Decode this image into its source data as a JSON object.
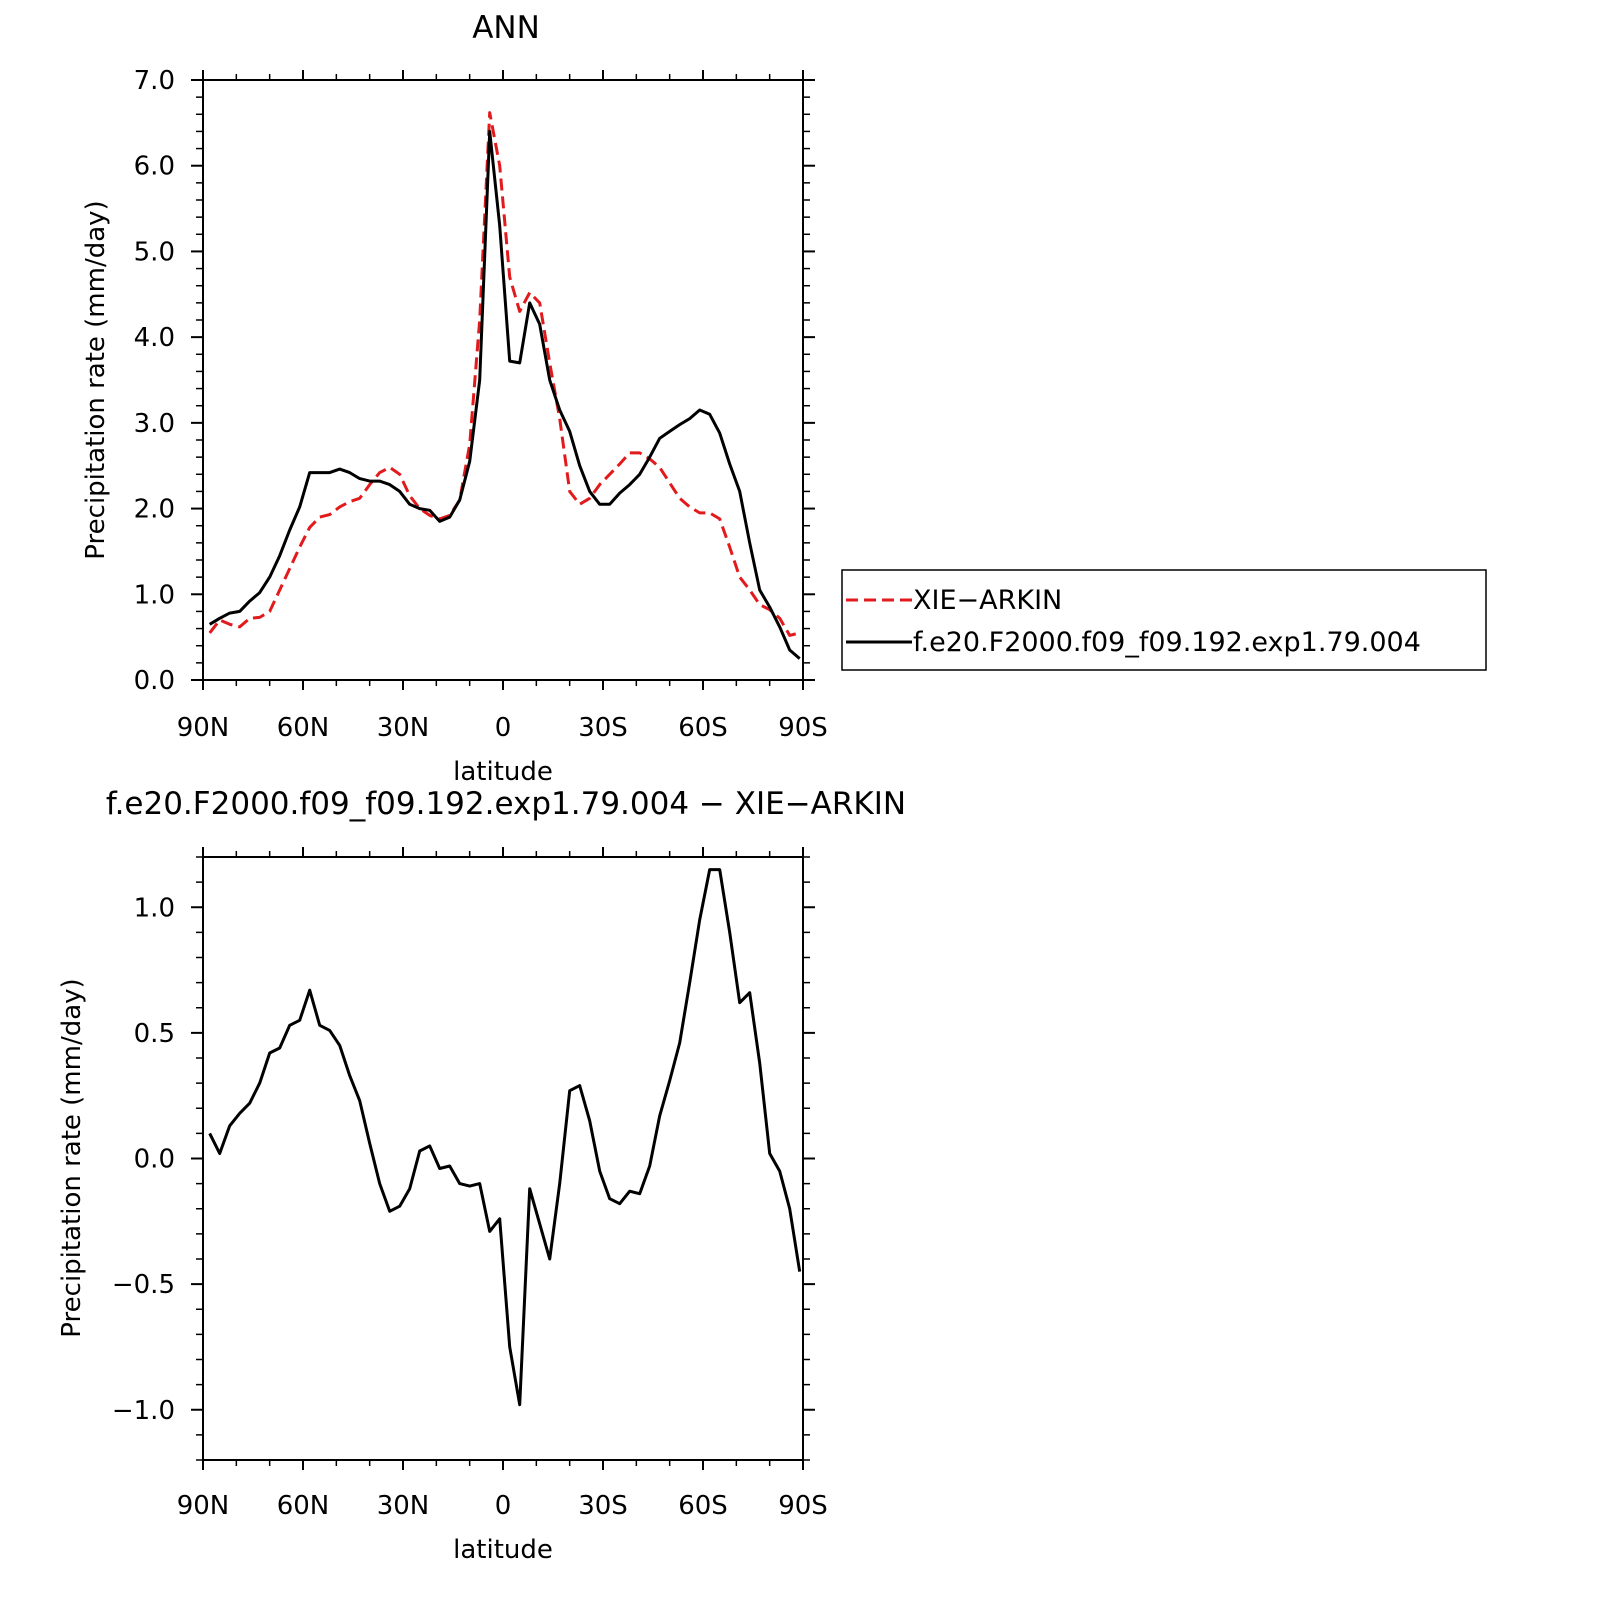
{
  "chart_data": [
    {
      "type": "line",
      "title": "ANN",
      "xlabel": "latitude",
      "ylabel": "Precipitation rate (mm/day)",
      "xlim": [
        -90,
        90
      ],
      "ylim": [
        0,
        7
      ],
      "x_ticks": [
        {
          "value": -90,
          "label": "90N"
        },
        {
          "value": -60,
          "label": "60N"
        },
        {
          "value": -30,
          "label": "30N"
        },
        {
          "value": 0,
          "label": "0"
        },
        {
          "value": 30,
          "label": "30S"
        },
        {
          "value": 60,
          "label": "60S"
        },
        {
          "value": 90,
          "label": "90S"
        }
      ],
      "y_ticks": [
        {
          "value": 0,
          "label": "0.0"
        },
        {
          "value": 1,
          "label": "1.0"
        },
        {
          "value": 2,
          "label": "2.0"
        },
        {
          "value": 3,
          "label": "3.0"
        },
        {
          "value": 4,
          "label": "4.0"
        },
        {
          "value": 5,
          "label": "5.0"
        },
        {
          "value": 6,
          "label": "6.0"
        },
        {
          "value": 7,
          "label": "7.0"
        }
      ],
      "legend": "right",
      "series": [
        {
          "name": "XIE−ARKIN",
          "color": "#e31a1c",
          "style": "dashed",
          "x": [
            -88,
            -85,
            -82,
            -79,
            -76,
            -73,
            -70,
            -67,
            -64,
            -61,
            -58,
            -55,
            -52,
            -49,
            -46,
            -43,
            -40,
            -37,
            -34,
            -31,
            -28,
            -25,
            -22,
            -19,
            -16,
            -13,
            -10,
            -7,
            -4,
            -1,
            2,
            5,
            8,
            11,
            14,
            17,
            20,
            23,
            26,
            29,
            32,
            35,
            38,
            41,
            44,
            47,
            50,
            53,
            56,
            59,
            62,
            65,
            68,
            71,
            74,
            77,
            80,
            83,
            86,
            89
          ],
          "values": [
            0.55,
            0.7,
            0.65,
            0.62,
            0.72,
            0.73,
            0.8,
            1.05,
            1.3,
            1.55,
            1.78,
            1.9,
            1.93,
            2.02,
            2.08,
            2.12,
            2.28,
            2.42,
            2.48,
            2.4,
            2.15,
            2.0,
            1.92,
            1.88,
            1.92,
            2.1,
            2.75,
            4.2,
            6.62,
            6.0,
            4.7,
            4.3,
            4.52,
            4.4,
            3.7,
            3.05,
            2.2,
            2.05,
            2.12,
            2.28,
            2.4,
            2.52,
            2.65,
            2.65,
            2.58,
            2.48,
            2.3,
            2.12,
            2.02,
            1.95,
            1.95,
            1.88,
            1.55,
            1.2,
            1.05,
            0.88,
            0.82,
            0.72,
            0.52,
            0.55
          ]
        },
        {
          "name": "f.e20.F2000.f09_f09.192.exp1.79.004",
          "color": "#000000",
          "style": "solid",
          "x": [
            -88,
            -85,
            -82,
            -79,
            -76,
            -73,
            -70,
            -67,
            -64,
            -61,
            -58,
            -55,
            -52,
            -49,
            -46,
            -43,
            -40,
            -37,
            -34,
            -31,
            -28,
            -25,
            -22,
            -19,
            -16,
            -13,
            -10,
            -7,
            -4,
            -1,
            2,
            5,
            8,
            11,
            14,
            17,
            20,
            23,
            26,
            29,
            32,
            35,
            38,
            41,
            44,
            47,
            50,
            53,
            56,
            59,
            62,
            65,
            68,
            71,
            74,
            77,
            80,
            83,
            86,
            89
          ],
          "values": [
            0.65,
            0.72,
            0.78,
            0.8,
            0.92,
            1.02,
            1.2,
            1.45,
            1.75,
            2.02,
            2.42,
            2.42,
            2.42,
            2.46,
            2.42,
            2.35,
            2.32,
            2.32,
            2.28,
            2.2,
            2.05,
            2.0,
            1.98,
            1.85,
            1.9,
            2.1,
            2.55,
            3.5,
            6.4,
            5.3,
            3.72,
            3.7,
            4.4,
            4.15,
            3.5,
            3.15,
            2.9,
            2.5,
            2.2,
            2.05,
            2.05,
            2.18,
            2.28,
            2.4,
            2.6,
            2.82,
            2.9,
            2.98,
            3.05,
            3.15,
            3.1,
            2.88,
            2.52,
            2.2,
            1.6,
            1.05,
            0.85,
            0.62,
            0.35,
            0.25
          ]
        }
      ]
    },
    {
      "type": "line",
      "title": "f.e20.F2000.f09_f09.192.exp1.79.004 − XIE−ARKIN",
      "xlabel": "latitude",
      "ylabel": "Precipitation rate (mm/day)",
      "xlim": [
        -90,
        90
      ],
      "ylim": [
        -1.2,
        1.2
      ],
      "x_ticks": [
        {
          "value": -90,
          "label": "90N"
        },
        {
          "value": -60,
          "label": "60N"
        },
        {
          "value": -30,
          "label": "30N"
        },
        {
          "value": 0,
          "label": "0"
        },
        {
          "value": 30,
          "label": "30S"
        },
        {
          "value": 60,
          "label": "60S"
        },
        {
          "value": 90,
          "label": "90S"
        }
      ],
      "y_ticks": [
        {
          "value": -1.0,
          "label": "−1.0"
        },
        {
          "value": -0.5,
          "label": "−0.5"
        },
        {
          "value": 0.0,
          "label": "0.0"
        },
        {
          "value": 0.5,
          "label": "0.5"
        },
        {
          "value": 1.0,
          "label": "1.0"
        }
      ],
      "series": [
        {
          "color": "#000000",
          "style": "solid",
          "x": [
            -88,
            -85,
            -82,
            -79,
            -76,
            -73,
            -70,
            -67,
            -64,
            -61,
            -58,
            -55,
            -52,
            -49,
            -46,
            -43,
            -40,
            -37,
            -34,
            -31,
            -28,
            -25,
            -22,
            -19,
            -16,
            -13,
            -10,
            -7,
            -4,
            -1,
            2,
            5,
            8,
            11,
            14,
            17,
            20,
            23,
            26,
            29,
            32,
            35,
            38,
            41,
            44,
            47,
            50,
            53,
            56,
            59,
            62,
            65,
            68,
            71,
            74,
            77,
            80,
            83,
            86,
            89
          ],
          "values": [
            0.1,
            0.02,
            0.13,
            0.18,
            0.22,
            0.3,
            0.42,
            0.44,
            0.53,
            0.55,
            0.67,
            0.53,
            0.51,
            0.45,
            0.33,
            0.23,
            0.06,
            -0.1,
            -0.21,
            -0.19,
            -0.12,
            0.03,
            0.05,
            -0.04,
            -0.03,
            -0.1,
            -0.11,
            -0.1,
            -0.29,
            -0.24,
            -0.75,
            -0.98,
            -0.12,
            -0.26,
            -0.4,
            -0.1,
            0.27,
            0.29,
            0.15,
            -0.05,
            -0.16,
            -0.18,
            -0.13,
            -0.14,
            -0.03,
            0.17,
            0.31,
            0.46,
            0.7,
            0.95,
            1.15,
            1.15,
            0.9,
            0.62,
            0.66,
            0.38,
            0.02,
            -0.05,
            -0.2,
            -0.45
          ]
        }
      ]
    }
  ]
}
